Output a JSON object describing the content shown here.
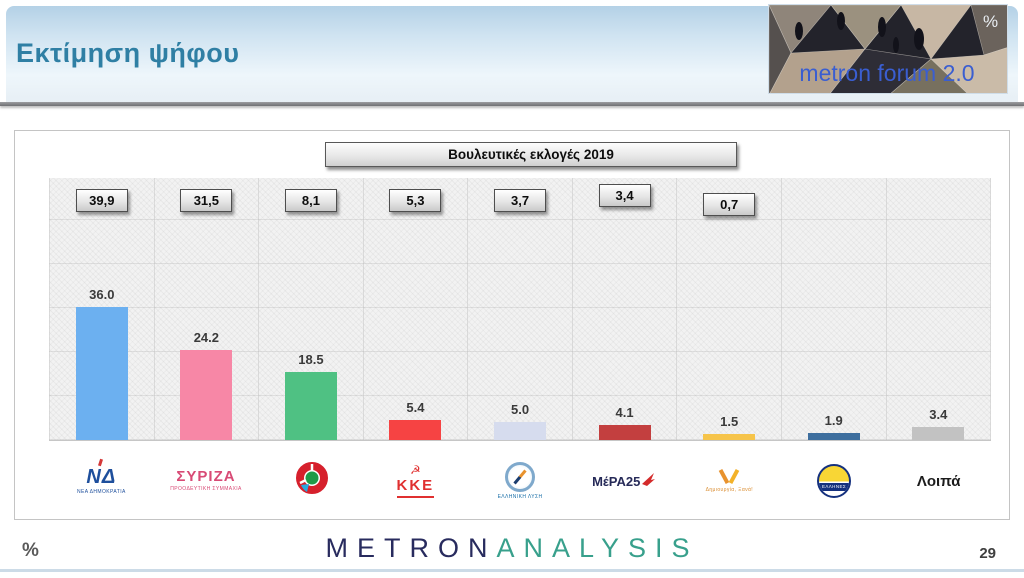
{
  "header": {
    "title": "Εκτίμηση ψήφου",
    "logo": {
      "brand": "metron forum 2.0",
      "percent": "%"
    }
  },
  "chart": {
    "title": "Βουλευτικές εκλογές 2019",
    "columns": [
      {
        "id": "nd",
        "party": "ΝΕΑ ΔΗΜΟΚΡΑΤΙΑ",
        "box_2019": "39,9",
        "bar_label": "36.0",
        "value": 36.0,
        "color": "#6cb0f0",
        "logo_text": "ΝΔ",
        "logo_caption": "ΝΕΑ ΔΗΜΟΚΡΑΤΙΑ"
      },
      {
        "id": "syriza",
        "party": "ΣΥΡΙΖΑ",
        "box_2019": "31,5",
        "bar_label": "24.2",
        "value": 24.2,
        "color": "#f787a6",
        "logo_text": "ΣΥΡΙΖΑ",
        "logo_caption": "ΠΡΟΟΔΕΥΤΙΚΗ ΣΥΜΜΑΧΙΑ"
      },
      {
        "id": "pasok",
        "party": "ΠΑΣΟΚ - ΚΙΝ.ΑΛ.",
        "box_2019": "8,1",
        "bar_label": "18.5",
        "value": 18.5,
        "color": "#4fc183",
        "logo_text": null,
        "logo_caption": null
      },
      {
        "id": "kke",
        "party": "ΚΚΕ",
        "box_2019": "5,3",
        "bar_label": "5.4",
        "value": 5.4,
        "color": "#f64343",
        "logo_text": "ΚΚΕ",
        "logo_caption": null,
        "logo_symbol": "☭"
      },
      {
        "id": "elliniki-lysi",
        "party": "ΕΛΛΗΝΙΚΗ ΛΥΣΗ",
        "box_2019": "3,7",
        "bar_label": "5.0",
        "value": 5.0,
        "color": "#d6dcee",
        "logo_text": null,
        "logo_caption": "ΕΛΛΗΝΙΚΗ ΛΥΣΗ"
      },
      {
        "id": "mera25",
        "party": "ΜέΡΑ25",
        "box_2019": "3,4",
        "bar_label": "4.1",
        "value": 4.1,
        "color": "#c33f3f",
        "logo_text": "ΜέΡΑ25",
        "logo_caption": null
      },
      {
        "id": "dimiourgia-xana",
        "party": "Δημιουργία Ξανά",
        "box_2019": "0,7",
        "bar_label": "1.5",
        "value": 1.5,
        "color": "#f6c44a",
        "logo_text": null,
        "logo_caption": "Δημιουργία, Ξανά!"
      },
      {
        "id": "ellines",
        "party": "ΕΛΛΗΝΕΣ",
        "box_2019": null,
        "bar_label": "1.9",
        "value": 1.9,
        "color": "#3d6e9e",
        "logo_text": null,
        "logo_caption": "ΕΛΛΗΝΕΣ"
      },
      {
        "id": "loipa",
        "party": "Λοιπά",
        "box_2019": null,
        "bar_label": "3.4",
        "value": 3.4,
        "color": "#c2c2c2",
        "logo_text": "Λοιπά",
        "logo_caption": null
      }
    ]
  },
  "chart_data": {
    "type": "bar",
    "title": "Βουλευτικές εκλογές 2019",
    "categories": [
      "ΝΕΑ ΔΗΜΟΚΡΑΤΙΑ",
      "ΣΥΡΙΖΑ",
      "ΠΑΣΟΚ - ΚΙΝ.ΑΛ.",
      "ΚΚΕ",
      "ΕΛΛΗΝΙΚΗ ΛΥΣΗ",
      "ΜέΡΑ25",
      "Δημιουργία Ξανά",
      "ΕΛΛΗΝΕΣ",
      "Λοιπά"
    ],
    "series": [
      {
        "name": "Εκτίμηση ψήφου",
        "values": [
          36.0,
          24.2,
          18.5,
          5.4,
          5.0,
          4.1,
          1.5,
          1.9,
          3.4
        ]
      },
      {
        "name": "Βουλευτικές εκλογές 2019",
        "values": [
          39.9,
          31.5,
          8.1,
          5.3,
          3.7,
          3.4,
          0.7,
          null,
          null
        ]
      }
    ],
    "bar_colors": [
      "#6cb0f0",
      "#f787a6",
      "#4fc183",
      "#f64343",
      "#d6dcee",
      "#c33f3f",
      "#f6c44a",
      "#3d6e9e",
      "#c2c2c2"
    ],
    "xlabel": "",
    "ylabel": "",
    "ylim": [
      0,
      71
    ],
    "grid": true,
    "legend_position": "none",
    "value_label_format": "x.x"
  },
  "footer": {
    "percent": "%",
    "brand_1": "METRON",
    "brand_2": "ANALYSIS",
    "page": "29"
  }
}
